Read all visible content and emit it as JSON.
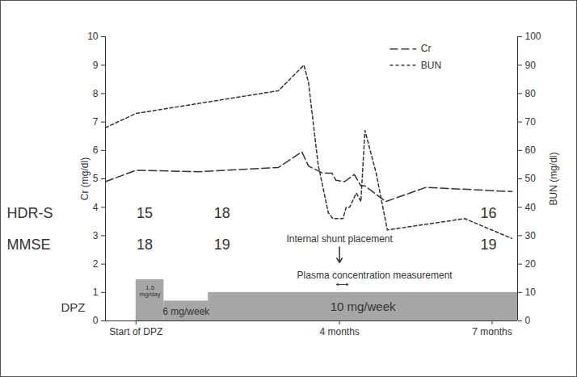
{
  "chart_data": {
    "type": "line",
    "y_label": "Cr (mg/dl)",
    "y2_label": "BUN (mg/dl)",
    "xlim": [
      -0.6,
      7.5
    ],
    "xticks": [
      {
        "value": 0,
        "label": "Start of DPZ"
      },
      {
        "value": 4,
        "label": "4 months"
      },
      {
        "value": 7,
        "label": "7 months"
      }
    ],
    "ylim": [
      0,
      10
    ],
    "yticks": [
      0,
      1,
      2,
      3,
      4,
      5,
      6,
      7,
      8,
      9,
      10
    ],
    "y2lim": [
      0,
      100
    ],
    "y2ticks": [
      0,
      10,
      20,
      30,
      40,
      50,
      60,
      70,
      80,
      90,
      100
    ],
    "legend": "top-right",
    "series": [
      {
        "name": "Cr",
        "color": "#333333",
        "line_style": "long_dash",
        "x": [
          -0.6,
          0,
          1.23,
          2.8,
          3.26,
          3.39,
          3.67,
          3.85,
          3.93,
          4.1,
          4.29,
          4.42,
          4.5,
          4.91,
          5.7,
          7.39
        ],
        "values": [
          4.9,
          5.3,
          5.25,
          5.4,
          5.95,
          5.45,
          5.2,
          5.2,
          4.95,
          4.9,
          5.15,
          4.75,
          4.75,
          4.2,
          4.7,
          4.55
        ]
      },
      {
        "name": "BUN",
        "color": "#333333",
        "line_style": "short_dash",
        "axis": "y2",
        "x": [
          -0.6,
          0,
          2.8,
          3.3,
          3.39,
          3.58,
          3.78,
          3.87,
          4.07,
          4.13,
          4.2,
          4.33,
          4.42,
          4.5,
          4.72,
          4.94,
          6.46,
          7.39
        ],
        "values": [
          68,
          73,
          81,
          90,
          84,
          55,
          38,
          36,
          36,
          40,
          40,
          45,
          42,
          67,
          52,
          32,
          36,
          29
        ]
      }
    ],
    "scores": [
      {
        "name": "HDR-S",
        "x": [
          0.17,
          1.69,
          6.93
        ],
        "values": [
          15,
          18,
          16
        ]
      },
      {
        "name": "MMSE",
        "x": [
          0.17,
          1.69,
          6.93
        ],
        "values": [
          18,
          19,
          19
        ]
      }
    ],
    "annotations": [
      {
        "text": "Internal shunt placement",
        "x": 4
      },
      {
        "text": "Plasma concentration measurement",
        "x_start": 3.94,
        "x_end": 4.17
      }
    ],
    "dosing": {
      "label": "DPZ",
      "periods": [
        {
          "label": "1.5 mg/day",
          "start": 0,
          "end": 0.55
        },
        {
          "label": "6 mg/week",
          "start": 0.55,
          "end": 1.42
        },
        {
          "label": "10 mg/week",
          "start": 1.42,
          "end": 7.5
        }
      ]
    }
  }
}
